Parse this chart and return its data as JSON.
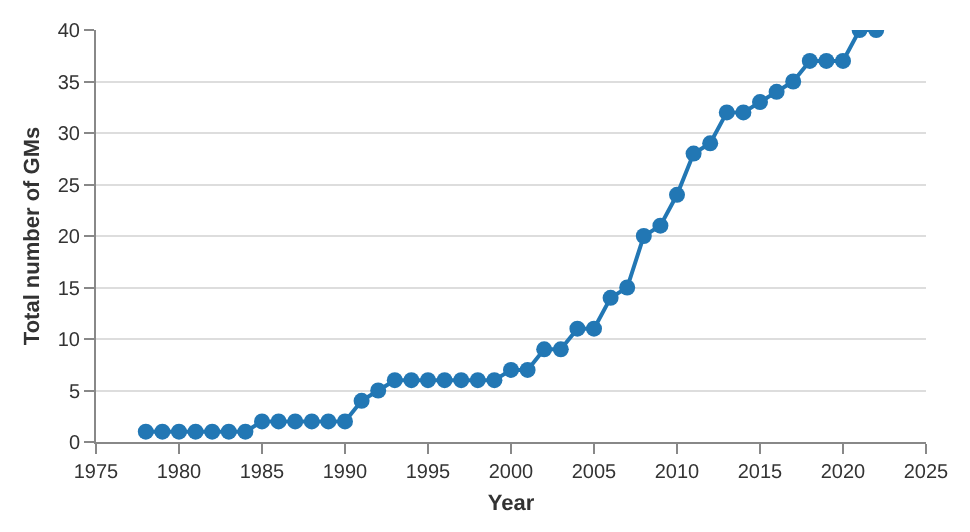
{
  "chart_data": {
    "type": "line",
    "xlabel": "Year",
    "ylabel": "Total number of GMs",
    "x": [
      1978,
      1979,
      1980,
      1981,
      1982,
      1983,
      1984,
      1985,
      1986,
      1987,
      1988,
      1989,
      1990,
      1991,
      1992,
      1993,
      1994,
      1995,
      1996,
      1997,
      1998,
      1999,
      2000,
      2001,
      2002,
      2003,
      2004,
      2005,
      2006,
      2007,
      2008,
      2009,
      2010,
      2011,
      2012,
      2013,
      2014,
      2015,
      2016,
      2017,
      2018,
      2019,
      2020,
      2021,
      2022
    ],
    "series": [
      {
        "color": "#2277b4",
        "values": [
          1,
          1,
          1,
          1,
          1,
          1,
          1,
          2,
          2,
          2,
          2,
          2,
          2,
          4,
          5,
          6,
          6,
          6,
          6,
          6,
          6,
          6,
          7,
          7,
          9,
          9,
          11,
          11,
          14,
          15,
          20,
          21,
          24,
          28,
          29,
          32,
          32,
          33,
          34,
          35,
          37,
          37,
          37,
          40,
          40
        ]
      }
    ],
    "xlim": [
      1975,
      2025
    ],
    "xticks": [
      1975,
      1980,
      1985,
      1990,
      1995,
      2000,
      2005,
      2010,
      2015,
      2020,
      2025
    ],
    "ylim": [
      0,
      40
    ],
    "yticks": [
      0,
      5,
      10,
      15,
      20,
      25,
      30,
      35,
      40
    ],
    "grid": "y",
    "marker": "circle",
    "line_style": "solid"
  }
}
